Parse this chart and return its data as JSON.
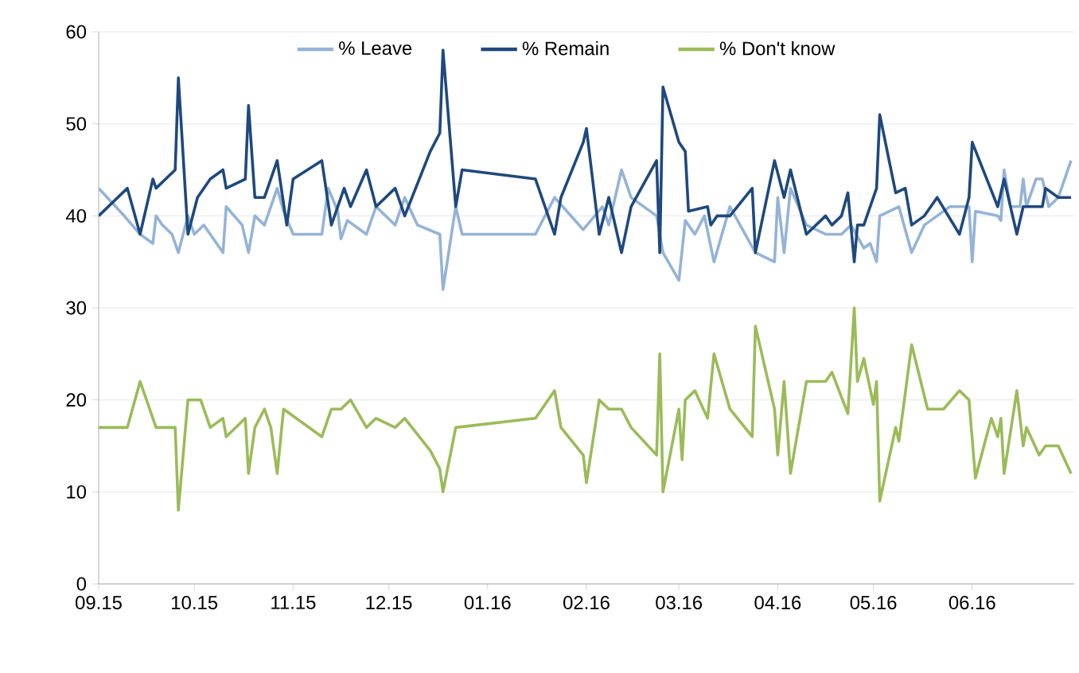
{
  "chart_data": {
    "type": "line",
    "ylim": [
      0,
      60
    ],
    "yticks": [
      0,
      10,
      20,
      30,
      40,
      50,
      60
    ],
    "xlim": [
      "2015-09-01",
      "2016-07-03"
    ],
    "xticks": [
      {
        "value": "2015-09-01",
        "label": "09.15"
      },
      {
        "value": "2015-10-01",
        "label": "10.15"
      },
      {
        "value": "2015-11-01",
        "label": "11.15"
      },
      {
        "value": "2015-12-01",
        "label": "12.15"
      },
      {
        "value": "2016-01-01",
        "label": "01.16"
      },
      {
        "value": "2016-02-01",
        "label": "02.16"
      },
      {
        "value": "2016-03-01",
        "label": "03.16"
      },
      {
        "value": "2016-04-01",
        "label": "04.16"
      },
      {
        "value": "2016-05-01",
        "label": "05.16"
      },
      {
        "value": "2016-06-01",
        "label": "06.16"
      }
    ],
    "grid": "y",
    "legend": "top",
    "marker": "none",
    "line_style": "solid",
    "series": [
      {
        "name": "% Leave",
        "color": "#95b3d7",
        "x": [
          "2015-09-01",
          "2015-09-09",
          "2015-09-14",
          "2015-09-18",
          "2015-09-19",
          "2015-09-21",
          "2015-09-24",
          "2015-09-26",
          "2015-09-29",
          "2015-10-01",
          "2015-10-04",
          "2015-10-10",
          "2015-10-11",
          "2015-10-16",
          "2015-10-18",
          "2015-10-20",
          "2015-10-23",
          "2015-10-27",
          "2015-10-29",
          "2015-11-01",
          "2015-11-10",
          "2015-11-12",
          "2015-11-15",
          "2015-11-16",
          "2015-11-18",
          "2015-11-24",
          "2015-11-27",
          "2015-12-03",
          "2015-12-06",
          "2015-12-10",
          "2015-12-17",
          "2015-12-18",
          "2015-12-22",
          "2015-12-24",
          "2016-01-16",
          "2016-01-22",
          "2016-01-31",
          "2016-02-06",
          "2016-02-08",
          "2016-02-12",
          "2016-02-15",
          "2016-02-23",
          "2016-02-25",
          "2016-03-01",
          "2016-03-03",
          "2016-03-06",
          "2016-03-09",
          "2016-03-12",
          "2016-03-17",
          "2016-03-25",
          "2016-03-31",
          "2016-04-01",
          "2016-04-03",
          "2016-04-05",
          "2016-04-10",
          "2016-04-16",
          "2016-04-21",
          "2016-04-24",
          "2016-04-28",
          "2016-04-30",
          "2016-05-02",
          "2016-05-03",
          "2016-05-09",
          "2016-05-13",
          "2016-05-17",
          "2016-05-21",
          "2016-05-25",
          "2016-05-31",
          "2016-06-01",
          "2016-06-02",
          "2016-06-09",
          "2016-06-10",
          "2016-06-11",
          "2016-06-13",
          "2016-06-16",
          "2016-06-17",
          "2016-06-18",
          "2016-06-21",
          "2016-06-23",
          "2016-06-25",
          "2016-06-28",
          "2016-07-02"
        ],
        "values": [
          43,
          40,
          38,
          37,
          40,
          39,
          38,
          36,
          40,
          38,
          39,
          36,
          41,
          39,
          36,
          40,
          39,
          43,
          40.5,
          38,
          38,
          43,
          40.5,
          37.5,
          39.5,
          38,
          41,
          39,
          42,
          39,
          38,
          32,
          41,
          38,
          38,
          42,
          38.5,
          41,
          39,
          45,
          42,
          40,
          36,
          33,
          39.5,
          38,
          40,
          35,
          41,
          36,
          35,
          42,
          36,
          43,
          39,
          38,
          38,
          39,
          36.5,
          37,
          35,
          40,
          41,
          36,
          39,
          40,
          41,
          41,
          35,
          40.5,
          40,
          39.5,
          45,
          41,
          41,
          44,
          41,
          44,
          44,
          41,
          42,
          46
        ]
      },
      {
        "name": "% Remain",
        "color": "#1f497d",
        "x": [
          "2015-09-01",
          "2015-09-10",
          "2015-09-14",
          "2015-09-18",
          "2015-09-19",
          "2015-09-25",
          "2015-09-26",
          "2015-09-29",
          "2015-10-02",
          "2015-10-06",
          "2015-10-10",
          "2015-10-11",
          "2015-10-17",
          "2015-10-18",
          "2015-10-20",
          "2015-10-23",
          "2015-10-27",
          "2015-10-30",
          "2015-11-01",
          "2015-11-10",
          "2015-11-13",
          "2015-11-17",
          "2015-11-19",
          "2015-11-24",
          "2015-11-27",
          "2015-12-03",
          "2015-12-06",
          "2015-12-14",
          "2015-12-17",
          "2015-12-18",
          "2015-12-22",
          "2015-12-24",
          "2016-01-16",
          "2016-01-22",
          "2016-01-24",
          "2016-01-31",
          "2016-02-01",
          "2016-02-05",
          "2016-02-08",
          "2016-02-12",
          "2016-02-15",
          "2016-02-23",
          "2016-02-24",
          "2016-02-25",
          "2016-03-01",
          "2016-03-03",
          "2016-03-04",
          "2016-03-10",
          "2016-03-11",
          "2016-03-13",
          "2016-03-17",
          "2016-03-24",
          "2016-03-25",
          "2016-03-31",
          "2016-04-03",
          "2016-04-05",
          "2016-04-10",
          "2016-04-16",
          "2016-04-18",
          "2016-04-21",
          "2016-04-23",
          "2016-04-25",
          "2016-04-26",
          "2016-04-28",
          "2016-05-02",
          "2016-05-03",
          "2016-05-08",
          "2016-05-11",
          "2016-05-13",
          "2016-05-17",
          "2016-05-21",
          "2016-05-28",
          "2016-05-31",
          "2016-06-01",
          "2016-06-09",
          "2016-06-11",
          "2016-06-15",
          "2016-06-17",
          "2016-06-23",
          "2016-06-24",
          "2016-06-28",
          "2016-07-02"
        ],
        "values": [
          40,
          43,
          38,
          44,
          43,
          45,
          55,
          38,
          42,
          44,
          45,
          43,
          44,
          52,
          42,
          42,
          46,
          39,
          44,
          46,
          39,
          43,
          41,
          45,
          41,
          43,
          40,
          47,
          49,
          58,
          41,
          45,
          44,
          38,
          42,
          48,
          49.5,
          38,
          42,
          36,
          41,
          46,
          36,
          54,
          48,
          47,
          40.5,
          41,
          39,
          40,
          40,
          43,
          36,
          46,
          42,
          45,
          38,
          40,
          39,
          40,
          42.5,
          35,
          39,
          39,
          43,
          51,
          42.5,
          43,
          39,
          40,
          42,
          38,
          42,
          48,
          41,
          44,
          38,
          41,
          41,
          43,
          42,
          42
        ]
      },
      {
        "name": "% Don't know",
        "color": "#9bbb59",
        "x": [
          "2015-09-01",
          "2015-09-10",
          "2015-09-14",
          "2015-09-19",
          "2015-09-25",
          "2015-09-26",
          "2015-09-29",
          "2015-10-03",
          "2015-10-06",
          "2015-10-10",
          "2015-10-11",
          "2015-10-17",
          "2015-10-18",
          "2015-10-20",
          "2015-10-23",
          "2015-10-25",
          "2015-10-27",
          "2015-10-29",
          "2015-11-10",
          "2015-11-13",
          "2015-11-16",
          "2015-11-19",
          "2015-11-24",
          "2015-11-27",
          "2015-12-03",
          "2015-12-06",
          "2015-12-14",
          "2015-12-17",
          "2015-12-18",
          "2015-12-22",
          "2016-01-16",
          "2016-01-22",
          "2016-01-24",
          "2016-01-31",
          "2016-02-01",
          "2016-02-05",
          "2016-02-08",
          "2016-02-12",
          "2016-02-15",
          "2016-02-23",
          "2016-02-24",
          "2016-02-25",
          "2016-03-01",
          "2016-03-02",
          "2016-03-03",
          "2016-03-06",
          "2016-03-10",
          "2016-03-12",
          "2016-03-17",
          "2016-03-24",
          "2016-03-25",
          "2016-03-31",
          "2016-04-01",
          "2016-04-03",
          "2016-04-05",
          "2016-04-10",
          "2016-04-16",
          "2016-04-18",
          "2016-04-23",
          "2016-04-25",
          "2016-04-26",
          "2016-04-28",
          "2016-05-01",
          "2016-05-02",
          "2016-05-03",
          "2016-05-08",
          "2016-05-09",
          "2016-05-13",
          "2016-05-18",
          "2016-05-23",
          "2016-05-28",
          "2016-05-31",
          "2016-06-02",
          "2016-06-07",
          "2016-06-09",
          "2016-06-10",
          "2016-06-11",
          "2016-06-15",
          "2016-06-17",
          "2016-06-18",
          "2016-06-22",
          "2016-06-24",
          "2016-06-28",
          "2016-07-02"
        ],
        "values": [
          17,
          17,
          22,
          17,
          17,
          8,
          20,
          20,
          17,
          18,
          16,
          18,
          12,
          17,
          19,
          17,
          12,
          19,
          16,
          19,
          19,
          20,
          17,
          18,
          17,
          18,
          14.5,
          12.5,
          10,
          17,
          18,
          21,
          17,
          14,
          11,
          20,
          19,
          19,
          17,
          14,
          25,
          10,
          19,
          13.5,
          20,
          21,
          18,
          25,
          19,
          16,
          28,
          19,
          14,
          22,
          12,
          22,
          22,
          23,
          18.5,
          30,
          22,
          24.5,
          19.5,
          22,
          9,
          17,
          15.5,
          26,
          19,
          19,
          21,
          20,
          11.5,
          18,
          16,
          18,
          12,
          21,
          15,
          17,
          14,
          15,
          15,
          12
        ]
      }
    ]
  }
}
